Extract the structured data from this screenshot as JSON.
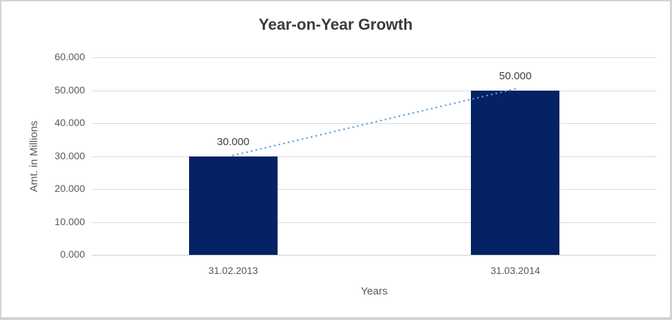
{
  "chart_data": {
    "type": "bar",
    "title": "Year-on-Year Growth",
    "categories": [
      "31.02.2013",
      "31.03.2014"
    ],
    "values": [
      30000,
      50000
    ],
    "data_labels": [
      "30.000",
      "50.000"
    ],
    "xlabel": "Years",
    "ylabel": "Amt. in Millions",
    "ylim": [
      0,
      60000
    ],
    "y_ticks": [
      "60.000",
      "50.000",
      "40.000",
      "30.000",
      "20.000",
      "10.000",
      "0.000"
    ],
    "grid": true,
    "legend": "none",
    "trendline": {
      "style": "dotted",
      "color": "#5B9BD5",
      "from_value": 30000,
      "to_value": 50000
    },
    "colors": {
      "bar": "#042264",
      "gridline": "#d9d9d9",
      "title_text": "#3b3b3b",
      "axis_text": "#595959",
      "frame": "#d3d3d3"
    }
  }
}
